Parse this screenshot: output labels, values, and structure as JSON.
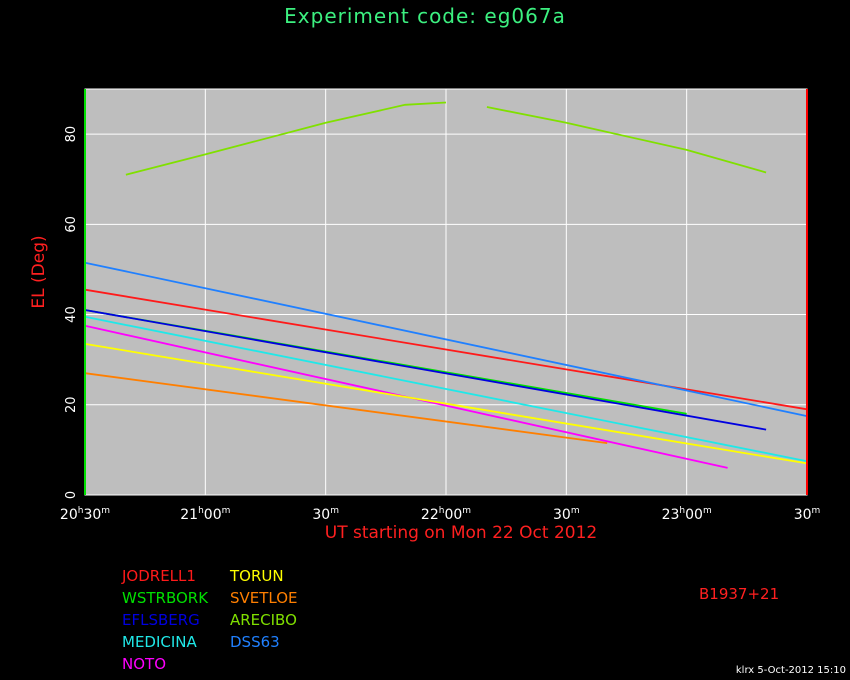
{
  "title": "Experiment code: eg067a",
  "source": "B1937+21",
  "footer": "klrx  5-Oct-2012 15:10",
  "colors": {
    "background": "#000000",
    "plot_bg": "#bebebe",
    "grid": "#ffffff",
    "title": "#3cf080",
    "axis_label": "#ff2020",
    "tick_label": "#ffffff",
    "source": "#ff2020",
    "start_marker": "#00e000",
    "end_marker": "#ff0000"
  },
  "chart_data": {
    "type": "line",
    "title": "Experiment code: eg067a",
    "xlabel": "UT starting on Mon  22 Oct 2012",
    "ylabel": "EL (Deg)",
    "x_unit": "hours UT",
    "xlim": [
      20.5,
      23.5
    ],
    "ylim": [
      0,
      90
    ],
    "grid": true,
    "x_ticks": [
      {
        "value": 20.5,
        "h": "20",
        "hs": "h",
        "m": "30",
        "ms": "m"
      },
      {
        "value": 21.0,
        "h": "21",
        "hs": "h",
        "m": "00",
        "ms": "m"
      },
      {
        "value": 21.5,
        "h": "",
        "hs": "",
        "m": "30",
        "ms": "m"
      },
      {
        "value": 22.0,
        "h": "22",
        "hs": "h",
        "m": "00",
        "ms": "m"
      },
      {
        "value": 22.5,
        "h": "",
        "hs": "",
        "m": "30",
        "ms": "m"
      },
      {
        "value": 23.0,
        "h": "23",
        "hs": "h",
        "m": "00",
        "ms": "m"
      },
      {
        "value": 23.5,
        "h": "",
        "hs": "",
        "m": "30",
        "ms": "m"
      }
    ],
    "y_ticks": [
      0,
      20,
      40,
      60,
      80
    ],
    "y_tick_labels": [
      "0",
      "20",
      "40",
      "60",
      "80"
    ],
    "markers": [
      {
        "x": 20.5,
        "color": "#00e000"
      },
      {
        "x": 23.5,
        "color": "#ff0000"
      }
    ],
    "series": [
      {
        "name": "JODRELL1",
        "color": "#ff1a1a",
        "x": [
          20.5,
          23.5
        ],
        "y": [
          45.5,
          19.0
        ]
      },
      {
        "name": "WSTRBORK",
        "color": "#00e000",
        "x": [
          20.5,
          23.0
        ],
        "y": [
          41.0,
          18.0
        ]
      },
      {
        "name": "EFLSBERG",
        "color": "#0000e0",
        "x": [
          20.5,
          23.33
        ],
        "y": [
          41.0,
          14.5
        ]
      },
      {
        "name": "MEDICINA",
        "color": "#20e8e8",
        "x": [
          20.5,
          23.5
        ],
        "y": [
          39.5,
          7.5
        ]
      },
      {
        "name": "NOTO",
        "color": "#ff00ff",
        "x": [
          20.5,
          23.17
        ],
        "y": [
          37.5,
          6.0
        ]
      },
      {
        "name": "TORUN",
        "color": "#ffff00",
        "x": [
          20.5,
          23.5
        ],
        "y": [
          33.5,
          7.0
        ]
      },
      {
        "name": "SVETLOE",
        "color": "#ff7f00",
        "x": [
          20.5,
          22.67
        ],
        "y": [
          27.0,
          11.5
        ]
      },
      {
        "name": "ARECIBO",
        "color": "#80e000",
        "x": [
          20.67,
          21.0,
          21.5,
          21.83,
          22.0
        ],
        "y": [
          71.0,
          75.5,
          82.5,
          86.5,
          87.0
        ]
      },
      {
        "name": "ARECIBO",
        "color": "#80e000",
        "x": [
          22.17,
          22.5,
          23.0,
          23.33
        ],
        "y": [
          86.0,
          82.5,
          76.5,
          71.5
        ]
      },
      {
        "name": "DSS63",
        "color": "#2080ff",
        "x": [
          20.5,
          23.5
        ],
        "y": [
          51.5,
          17.5
        ]
      }
    ]
  },
  "legend": [
    {
      "label": "JODRELL1",
      "color": "#ff1a1a"
    },
    {
      "label": "WSTRBORK",
      "color": "#00e000"
    },
    {
      "label": "EFLSBERG",
      "color": "#0000e0"
    },
    {
      "label": "MEDICINA",
      "color": "#20e8e8"
    },
    {
      "label": "NOTO",
      "color": "#ff00ff"
    },
    {
      "label": "TORUN",
      "color": "#ffff00"
    },
    {
      "label": "SVETLOE",
      "color": "#ff7f00"
    },
    {
      "label": "ARECIBO",
      "color": "#80e000"
    },
    {
      "label": "DSS63",
      "color": "#2080ff"
    }
  ]
}
